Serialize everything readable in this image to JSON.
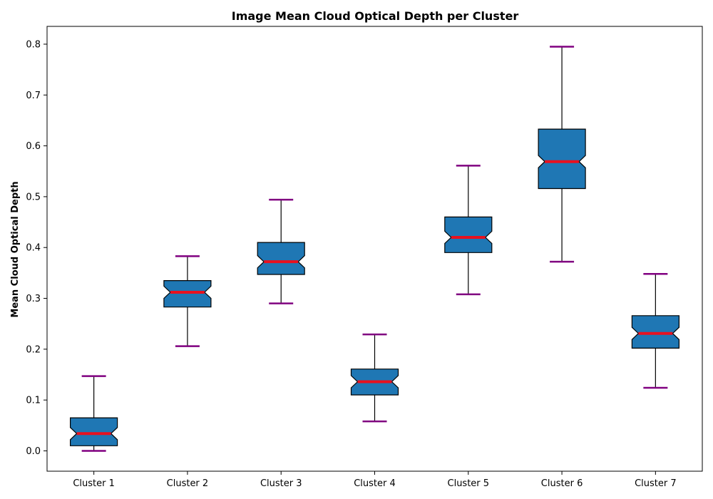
{
  "chart_data": {
    "type": "box",
    "title": "Image Mean Cloud Optical Depth per Cluster",
    "xlabel": "",
    "ylabel": "Mean Cloud Optical Depth",
    "ylim": [
      -0.04,
      0.835
    ],
    "yticks": [
      "0.0",
      "0.1",
      "0.2",
      "0.3",
      "0.4",
      "0.5",
      "0.6",
      "0.7",
      "0.8"
    ],
    "notched": true,
    "grid": false,
    "colors": {
      "box_fill": "#1f77b4",
      "median": "#e8111f",
      "caps": "#800080",
      "whiskers": "#000000"
    },
    "categories": [
      "Cluster 1",
      "Cluster 2",
      "Cluster 3",
      "Cluster 4",
      "Cluster 5",
      "Cluster 6",
      "Cluster 7"
    ],
    "boxes": [
      {
        "min": 0.0,
        "q1": 0.01,
        "median": 0.034,
        "q3": 0.065,
        "max": 0.147
      },
      {
        "min": 0.206,
        "q1": 0.283,
        "median": 0.312,
        "q3": 0.335,
        "max": 0.383
      },
      {
        "min": 0.29,
        "q1": 0.347,
        "median": 0.372,
        "q3": 0.41,
        "max": 0.494
      },
      {
        "min": 0.058,
        "q1": 0.11,
        "median": 0.136,
        "q3": 0.161,
        "max": 0.229
      },
      {
        "min": 0.308,
        "q1": 0.39,
        "median": 0.42,
        "q3": 0.46,
        "max": 0.561
      },
      {
        "min": 0.372,
        "q1": 0.516,
        "median": 0.569,
        "q3": 0.633,
        "max": 0.795
      },
      {
        "min": 0.124,
        "q1": 0.202,
        "median": 0.231,
        "q3": 0.266,
        "max": 0.348
      }
    ]
  }
}
